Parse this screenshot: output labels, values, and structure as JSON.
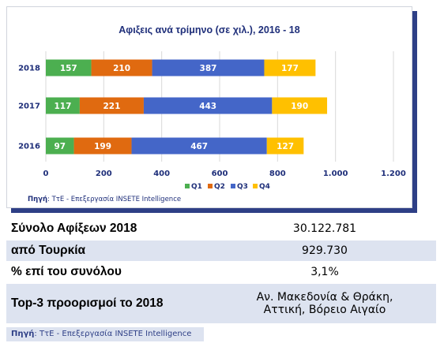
{
  "chart_data": {
    "type": "bar",
    "orientation": "horizontal",
    "stacked": true,
    "title": "Αφιξεις ανά τρίμηνο (σε χιλ.), 2016 - 18",
    "categories": [
      "2018",
      "2017",
      "2016"
    ],
    "series": [
      {
        "name": "Q1",
        "color": "#4caf50",
        "values": [
          157,
          117,
          97
        ]
      },
      {
        "name": "Q2",
        "color": "#e06a10",
        "values": [
          210,
          221,
          199
        ]
      },
      {
        "name": "Q3",
        "color": "#4466c8",
        "values": [
          387,
          443,
          467
        ]
      },
      {
        "name": "Q4",
        "color": "#ffc000",
        "values": [
          177,
          190,
          127
        ]
      }
    ],
    "xlim": [
      0,
      1200
    ],
    "xticks": [
      0,
      200,
      400,
      600,
      800,
      1000,
      1200
    ],
    "xtick_labels": [
      "0",
      "200",
      "400",
      "600",
      "800",
      "1.000",
      "1.200"
    ],
    "grid": true,
    "legend_position": "bottom",
    "source_label": "Πηγή",
    "source_text": ": ΤτΕ - Επεξεργασία INSETE Intelligence"
  },
  "table": {
    "rows": [
      {
        "label": "Σύνολο Αφίξεων 2018",
        "value": "30.122.781"
      },
      {
        "label": "από Τουρκία",
        "value": "929.730"
      },
      {
        "label": "% επί του συνόλου",
        "value": "3,1%"
      },
      {
        "label": "Top-3 προορισμοί το 2018",
        "value_lines": [
          "Αν. Μακεδονία & Θράκη,",
          "Αττική, Βόρειο Αιγαίο"
        ]
      }
    ]
  },
  "source": {
    "label": "Πηγή",
    "text": ": ΤτΕ - Επεξεργασία INSETE Intelligence"
  }
}
